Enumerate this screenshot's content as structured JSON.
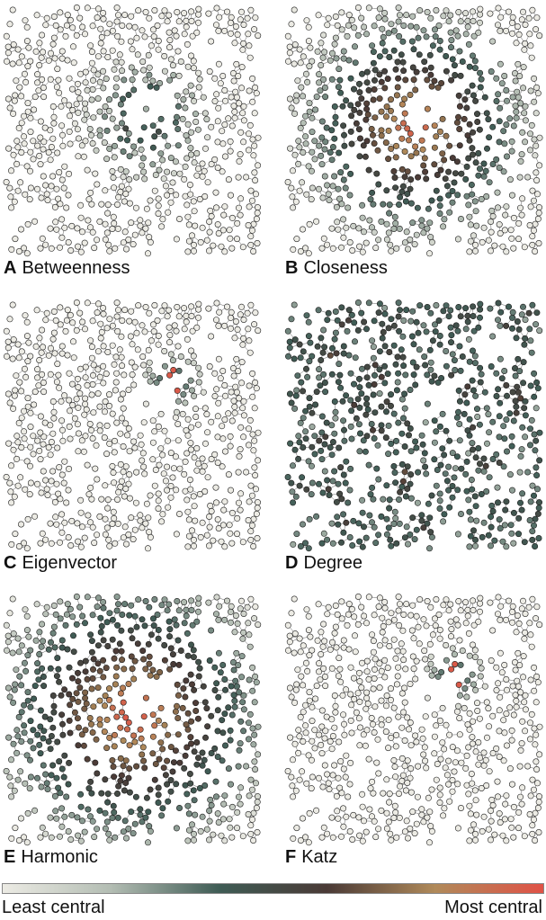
{
  "panels": [
    {
      "letter": "A",
      "title": "Betweenness",
      "pattern": "betweenness"
    },
    {
      "letter": "B",
      "title": "Closeness",
      "pattern": "closeness"
    },
    {
      "letter": "C",
      "title": "Eigenvector",
      "pattern": "eigenvector"
    },
    {
      "letter": "D",
      "title": "Degree",
      "pattern": "degree"
    },
    {
      "letter": "E",
      "title": "Harmonic",
      "pattern": "harmonic"
    },
    {
      "letter": "F",
      "title": "Katz",
      "pattern": "katz"
    }
  ],
  "colorbar": {
    "low_label": "Least central",
    "high_label": "Most central",
    "stops": [
      "#ecebe4",
      "#b3bdb3",
      "#3f5c55",
      "#4a3a36",
      "#b08a5a",
      "#e05246"
    ]
  }
}
